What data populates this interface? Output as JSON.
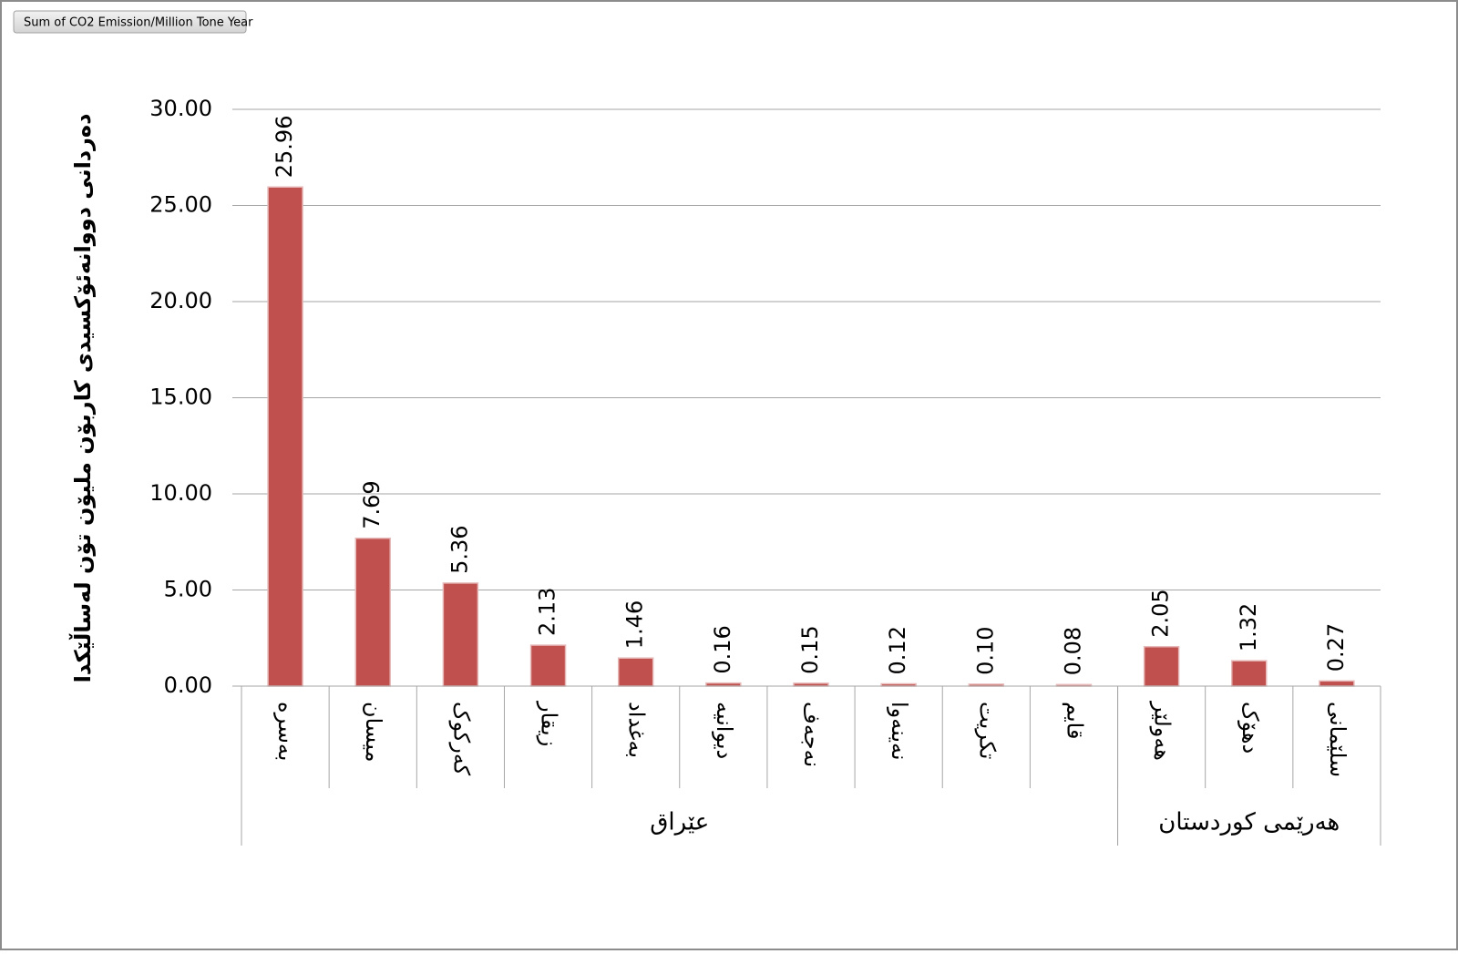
{
  "pivot_field": "Sum of CO2 Emission/Million Tone Year",
  "chart_data": {
    "type": "bar",
    "y_label": "دەردانی دووانەئۆکسیدی کاربۆن ملیۆن تۆن لەساڵێکدا",
    "categories": [
      "بەسرە",
      "میسان",
      "کەرکوک",
      "زیقار",
      "بەغداد",
      "دیوانیە",
      "نەجەف",
      "نەینەوا",
      "تکریت",
      "قایم",
      "هەولێر",
      "دهۆک",
      "سلێمانی"
    ],
    "groups": [
      {
        "name": "عێراق",
        "size": 10
      },
      {
        "name": "هەرێمی کوردستان",
        "size": 3
      }
    ],
    "values": [
      25.96,
      7.69,
      5.36,
      2.13,
      1.46,
      0.16,
      0.15,
      0.12,
      0.1,
      0.08,
      2.05,
      1.32,
      0.27
    ],
    "value_labels": [
      "25.96",
      "7.69",
      "5.36",
      "2.13",
      "1.46",
      "0.16",
      "0.15",
      "0.12",
      "0.10",
      "0.08",
      "2.05",
      "1.32",
      "0.27"
    ],
    "color": "#c0504d",
    "ylim": [
      0,
      30
    ],
    "yticks": [
      {
        "value": 0,
        "label": "0.00"
      },
      {
        "value": 5,
        "label": "5.00"
      },
      {
        "value": 10,
        "label": "10.00"
      },
      {
        "value": 15,
        "label": "15.00"
      },
      {
        "value": 20,
        "label": "20.00"
      },
      {
        "value": 25,
        "label": "25.00"
      },
      {
        "value": 30,
        "label": "30.00"
      }
    ],
    "grid": true
  }
}
